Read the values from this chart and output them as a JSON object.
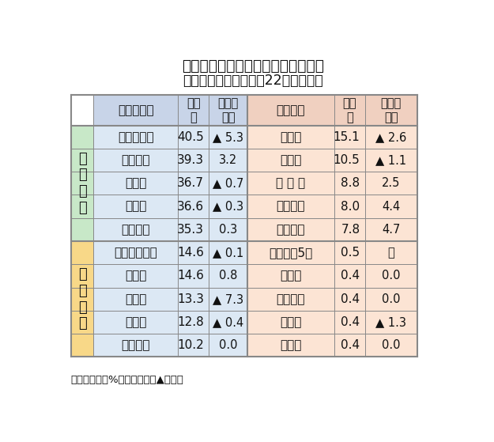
{
  "title_line1": "地域銀の定期預金残存期間別構成比",
  "title_line2": "高い５行と低い５行（22年３月末）",
  "note": "（注）単位、%、ポイント、▲は低下",
  "header_col1": "３カ月未満",
  "header_col2": "構成\n比",
  "header_col3": "前年比\n差引",
  "header_col4": "３年以上",
  "header_col5": "構成\n比",
  "header_col6": "前年比\n差引",
  "group1_label": "高\nい\n５\n行",
  "group2_label": "低\nい\n５\n行",
  "high_left": [
    [
      "東京スター",
      "40.5",
      "▲ 5.3"
    ],
    [
      "千葉興業",
      "39.3",
      "3.2"
    ],
    [
      "横　浜",
      "36.7",
      "▲ 0.7"
    ],
    [
      "鹿児島",
      "36.6",
      "▲ 0.3"
    ],
    [
      "第四北越",
      "35.3",
      "0.3"
    ]
  ],
  "high_right": [
    [
      "長　崎",
      "15.1",
      "▲ 2.6"
    ],
    [
      "豊　和",
      "10.5",
      "▲ 1.1"
    ],
    [
      "北 海 道",
      "8.8",
      "2.5"
    ],
    [
      "山陰合同",
      "8.0",
      "4.4"
    ],
    [
      "山梨中央",
      "7.8",
      "4.7"
    ]
  ],
  "low_left": [
    [
      "西日本シティ",
      "14.6",
      "▲ 0.1"
    ],
    [
      "島　根",
      "14.6",
      "0.8"
    ],
    [
      "筑　邦",
      "13.3",
      "▲ 7.3"
    ],
    [
      "スルガ",
      "12.8",
      "▲ 0.4"
    ],
    [
      "佐賀共栄",
      "10.2",
      "0.0"
    ]
  ],
  "low_right": [
    [
      "秋田など5行",
      "0.5",
      "－"
    ],
    [
      "青　森",
      "0.4",
      "0.0"
    ],
    [
      "みちのく",
      "0.4",
      "0.0"
    ],
    [
      "荘　内",
      "0.4",
      "▲ 1.3"
    ],
    [
      "東　北",
      "0.4",
      "0.0"
    ]
  ],
  "bg_header_left": "#c8d4e8",
  "bg_header_right": "#f0d0c0",
  "bg_data_left": "#dce8f4",
  "bg_data_right": "#fce4d4",
  "bg_group_high": "#e8f4e8",
  "bg_group_low": "#fdf0e0",
  "bg_label_high": "#c8e8c8",
  "bg_label_low": "#f8d888",
  "border_color": "#888888",
  "text_color": "#111111"
}
